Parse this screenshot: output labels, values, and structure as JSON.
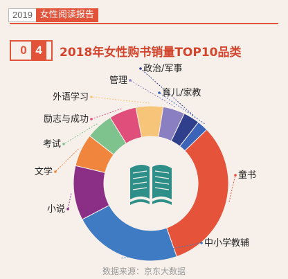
{
  "header": {
    "year": "2019",
    "report_name": "女性阅读报告"
  },
  "section": {
    "number_first": "0",
    "number_second": "4",
    "title": "2018年女性购书销量TOP10品类"
  },
  "chart_data": {
    "type": "pie",
    "variant": "donut",
    "title": "2018年女性购书销量TOP10品类",
    "categories": [
      "童书",
      "中小学教辅",
      "小说",
      "文学",
      "考试",
      "励志与成功",
      "外语学习",
      "管理",
      "政治/军事",
      "育儿/家教"
    ],
    "values": [
      28,
      20,
      10,
      6,
      5,
      5,
      5,
      4,
      3,
      2
    ],
    "colors": [
      "#e5533b",
      "#3f7bc2",
      "#8b2f86",
      "#f0853e",
      "#7ec28e",
      "#e04f7b",
      "#f6c57a",
      "#8a7fc0",
      "#2f3f8c",
      "#3b63b8"
    ],
    "center_icon": "open-book-icon"
  },
  "source": "数据来源：京东大数据"
}
